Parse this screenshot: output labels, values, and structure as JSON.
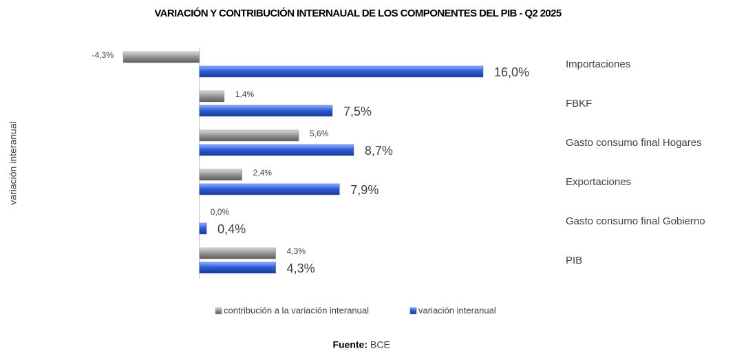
{
  "chart_data": {
    "type": "barh",
    "title": "VARIACIÓN Y CONTRIBUCIÓN INTERNAUAL DE LOS COMPONENTES DEL PIB - Q2 2025",
    "y_label": "variación interanual",
    "categories": [
      "Importaciones",
      "FBKF",
      "Gasto consumo final Hogares",
      "Exportaciones",
      "Gasto consumo final Gobierno",
      "PIB"
    ],
    "series": [
      {
        "name": "contribución a la variación interanual",
        "color": "#8e8e8e",
        "values": [
          -4.3,
          1.4,
          5.6,
          2.4,
          0.0,
          4.3
        ],
        "value_labels": [
          "-4,3%",
          "1,4%",
          "5,6%",
          "2,4%",
          "0,0%",
          "4,3%"
        ]
      },
      {
        "name": "variación interanual",
        "color": "#2f5fd8",
        "values": [
          16.0,
          7.5,
          8.7,
          7.9,
          0.4,
          4.3
        ],
        "value_labels": [
          "16,0%",
          "7,5%",
          "8,7%",
          "7,9%",
          "0,4%",
          "4,3%"
        ]
      }
    ],
    "xlim": [
      -5,
      20
    ],
    "legend": "bottom",
    "source": {
      "label": "Fuente:",
      "text": "BCE"
    }
  }
}
